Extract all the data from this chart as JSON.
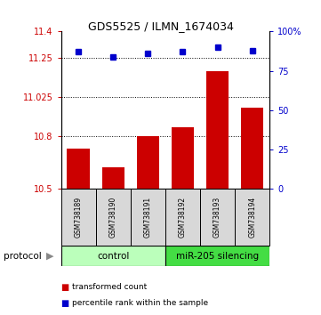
{
  "title": "GDS5525 / ILMN_1674034",
  "samples": [
    "GSM738189",
    "GSM738190",
    "GSM738191",
    "GSM738192",
    "GSM738193",
    "GSM738194"
  ],
  "bar_values": [
    10.73,
    10.625,
    10.8,
    10.855,
    11.175,
    10.965
  ],
  "bar_base": 10.5,
  "blue_dot_pct": [
    87,
    84,
    86,
    87,
    90,
    88
  ],
  "ylim_left": [
    10.5,
    11.4
  ],
  "ylim_right": [
    0,
    100
  ],
  "yticks_left": [
    10.5,
    10.8,
    11.025,
    11.25,
    11.4
  ],
  "yticks_right": [
    0,
    25,
    50,
    75,
    100
  ],
  "ytick_labels_left": [
    "10.5",
    "10.8",
    "11.025",
    "11.25",
    "11.4"
  ],
  "ytick_labels_right": [
    "0",
    "25",
    "50",
    "75",
    "100%"
  ],
  "hlines": [
    10.8,
    11.025,
    11.25
  ],
  "bar_color": "#cc0000",
  "dot_color": "#0000cc",
  "control_label": "control",
  "mirna_label": "miR-205 silencing",
  "control_color": "#bbffbb",
  "mirna_color": "#44dd44",
  "protocol_label": "protocol",
  "legend_bar_label": "transformed count",
  "legend_dot_label": "percentile rank within the sample",
  "sample_bg_color": "#d8d8d8",
  "title_fontsize": 9
}
